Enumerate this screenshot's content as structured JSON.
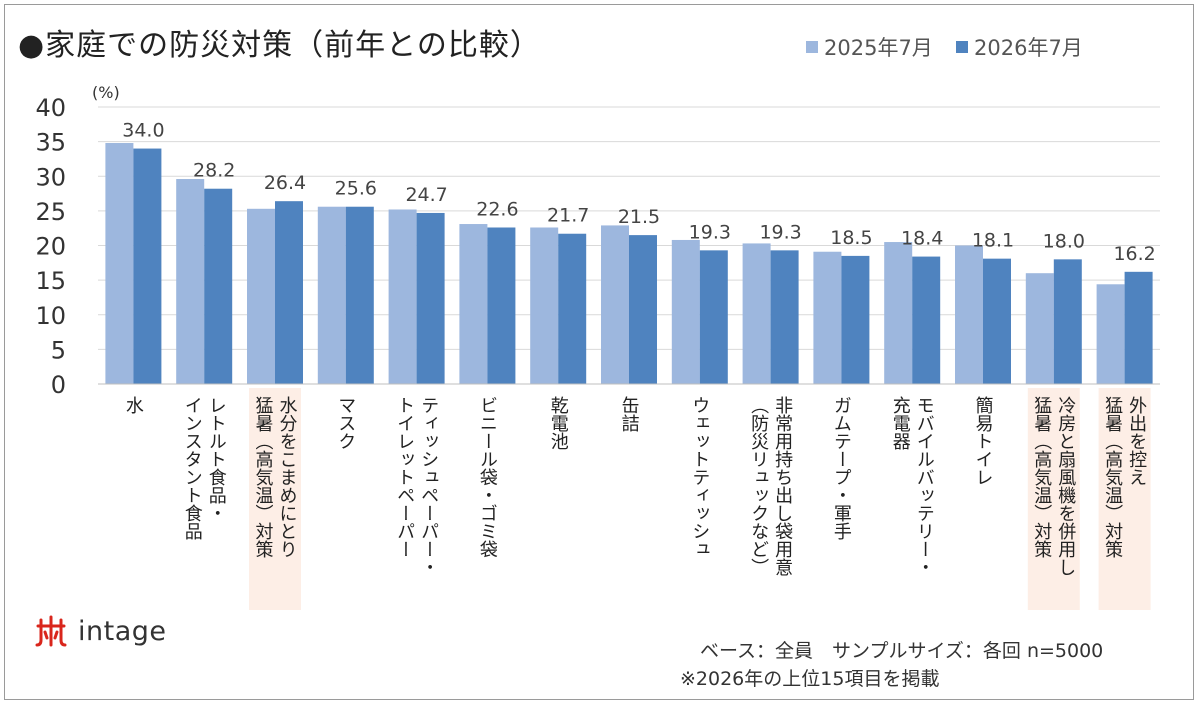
{
  "title": "●家庭での防災対策（前年との比較）",
  "colors": {
    "series_2025": "#9db7de",
    "series_2026": "#4f83bf",
    "highlight": "#fdeee6",
    "grid": "#d9d9d9",
    "label": "#444444"
  },
  "chart_data": {
    "type": "bar",
    "ylabel": "(%)",
    "ylim": [
      0,
      40
    ],
    "yticks": [
      0,
      5,
      10,
      15,
      20,
      25,
      30,
      35,
      40
    ],
    "grid": true,
    "legend": "top-right",
    "categories": [
      "水",
      "レトルト食品・\nインスタント食品",
      "水分をこまめにとり\n猛暑（高気温）対策",
      "マスク",
      "ティッシュペーパー・\nトイレットペーパー",
      "ビニール袋・ゴミ袋",
      "乾電池",
      "缶詰",
      "ウェットティッシュ",
      "非常用持ち出し袋用意\n（防災リュックなど）",
      "ガムテープ・軍手",
      "モバイルバッテリー・\n充電器",
      "簡易トイレ",
      "冷房と扇風機を併用し\n猛暑（高気温）対策",
      "外出を控え\n猛暑（高気温）対策"
    ],
    "highlighted_categories": [
      2,
      13,
      14
    ],
    "series": [
      {
        "name": "2025年7月",
        "values": [
          34.8,
          29.6,
          25.3,
          25.6,
          25.2,
          23.1,
          22.6,
          22.9,
          20.8,
          20.3,
          19.1,
          20.5,
          20.0,
          16.0,
          14.4
        ]
      },
      {
        "name": "2026年7月",
        "values": [
          34.0,
          28.2,
          26.4,
          25.6,
          24.7,
          22.6,
          21.7,
          21.5,
          19.3,
          19.3,
          18.5,
          18.4,
          18.1,
          18.0,
          16.2
        ]
      }
    ],
    "data_labels": [
      "34.0",
      "28.2",
      "26.4",
      "25.6",
      "24.7",
      "22.6",
      "21.7",
      "21.5",
      "19.3",
      "19.3",
      "18.5",
      "18.4",
      "18.1",
      "18.0",
      "16.2"
    ]
  },
  "logo": {
    "text": "intage"
  },
  "footer": {
    "base": "ベース：全員　サンプルサイズ：各回 n=5000",
    "note": "※2026年の上位15項目を掲載"
  }
}
